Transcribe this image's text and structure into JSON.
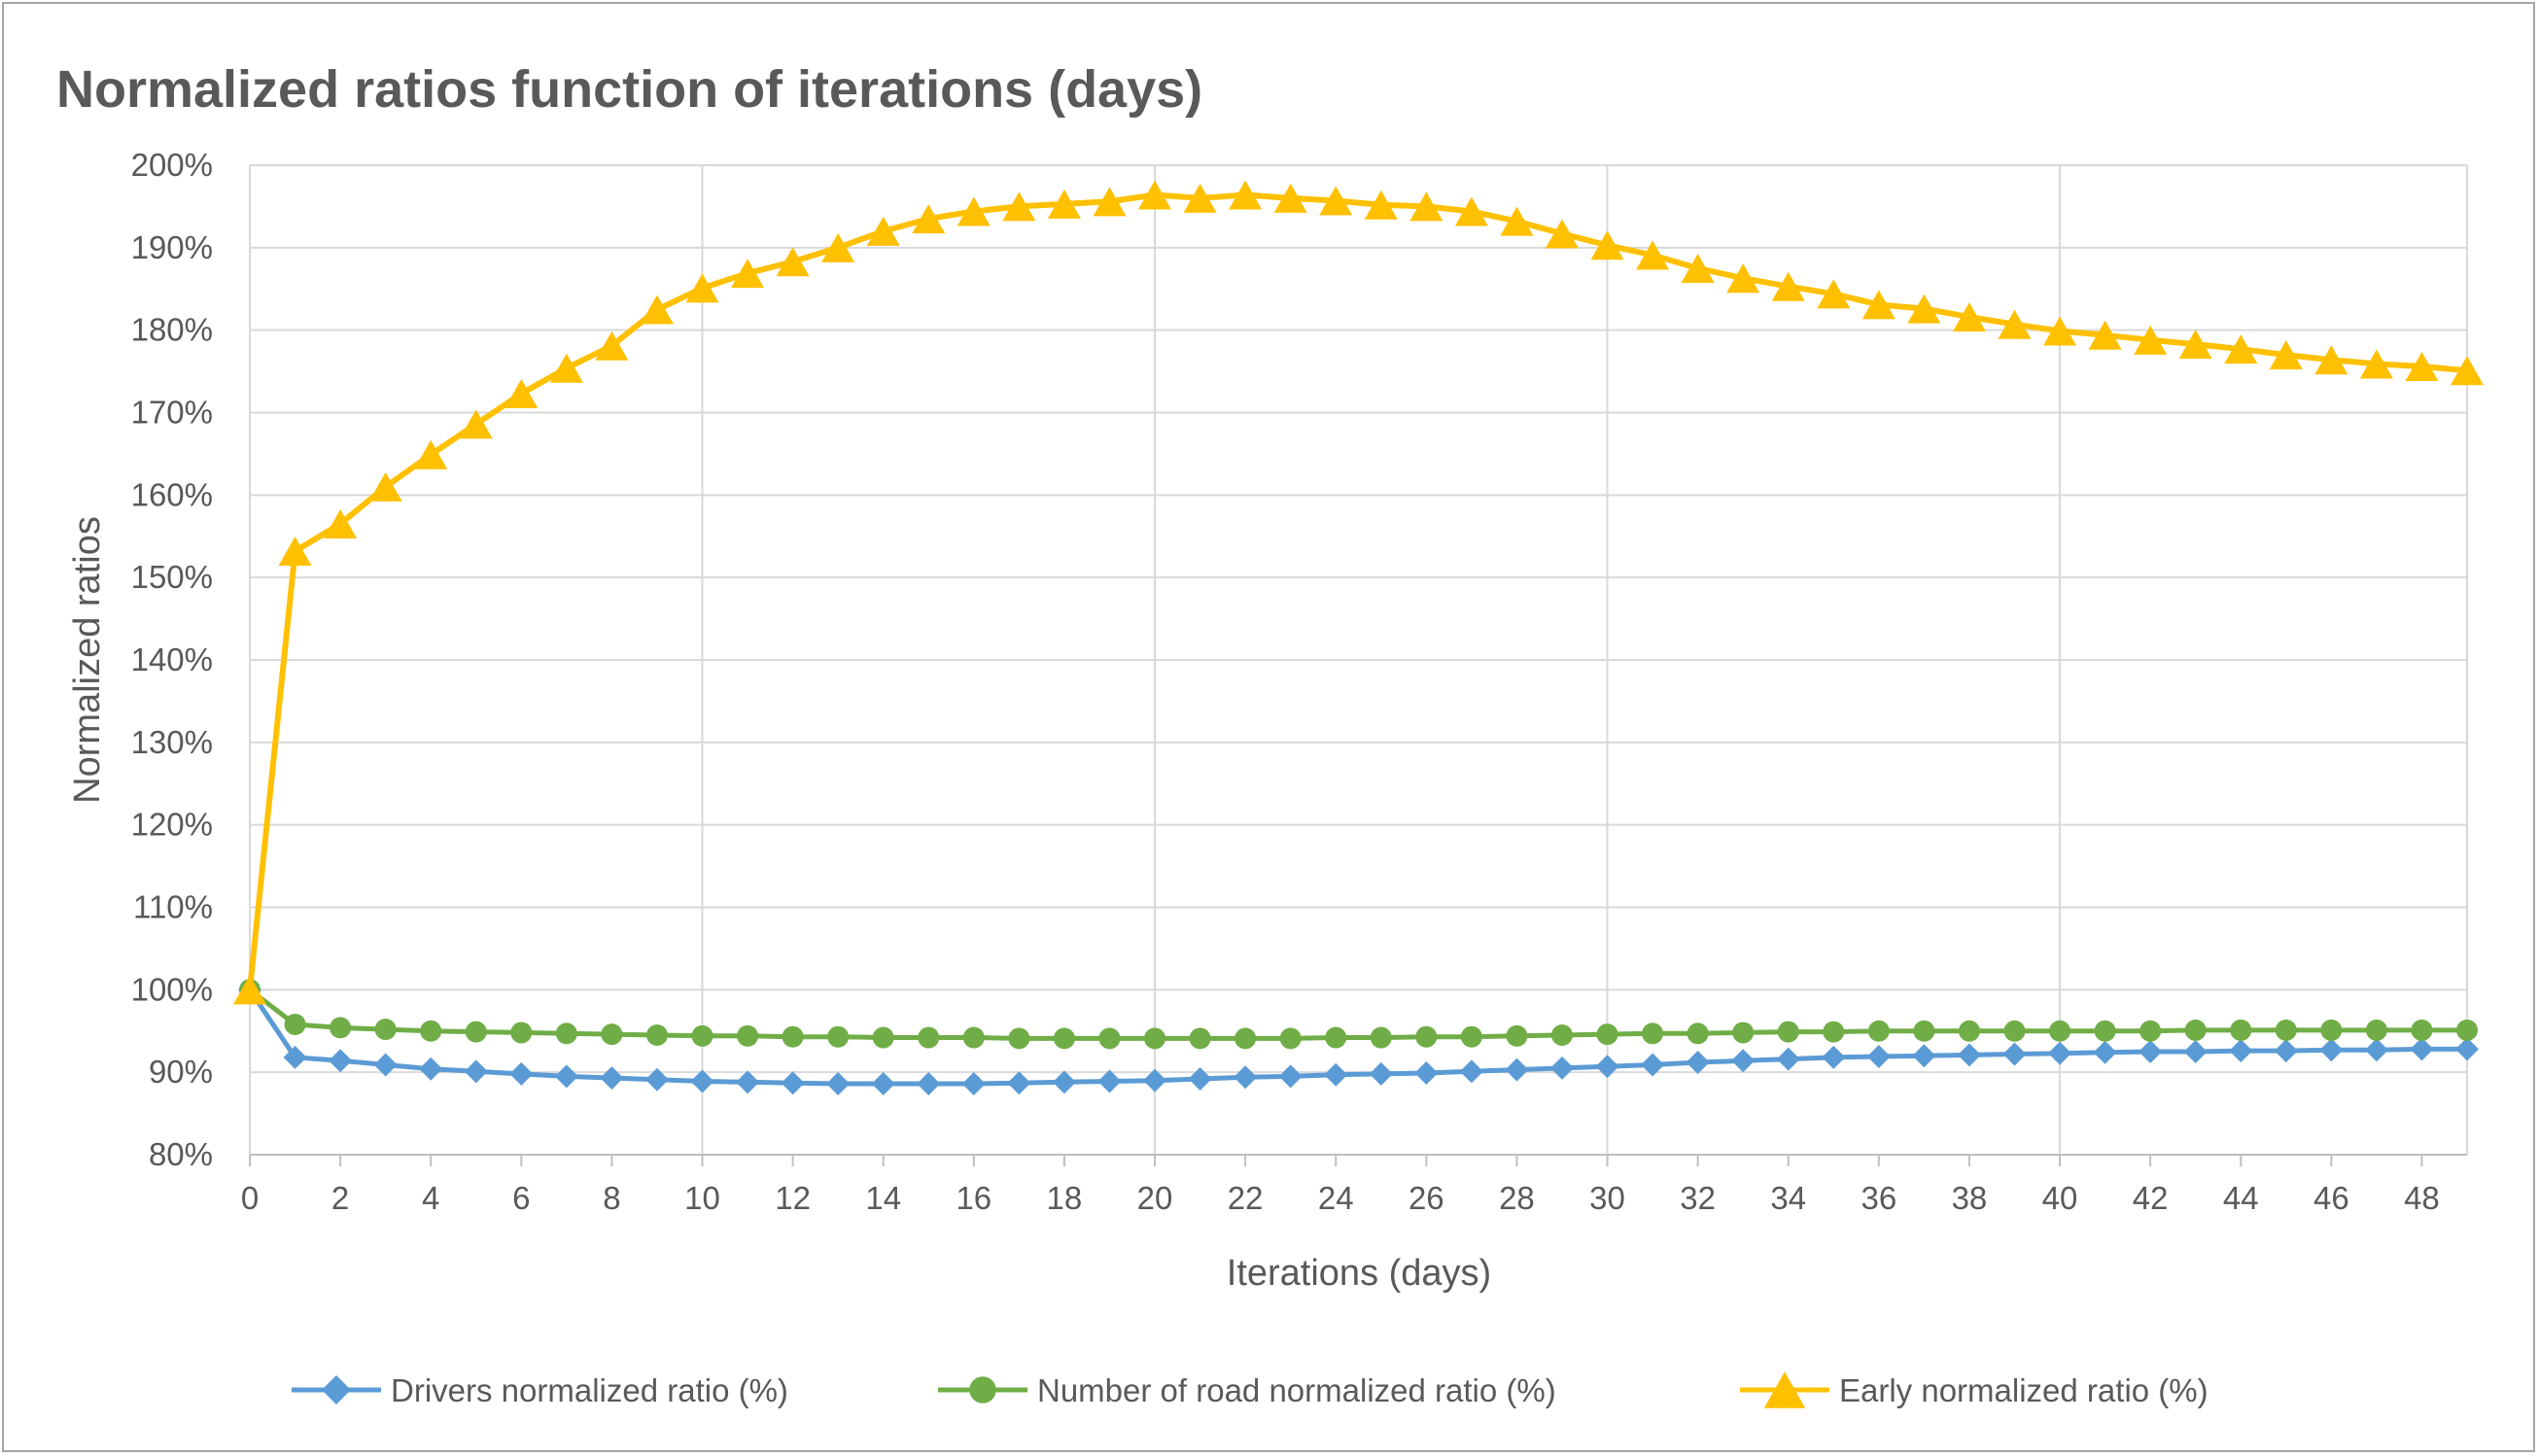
{
  "chart_data": {
    "type": "line",
    "title": "Normalized ratios function of iterations (days)",
    "xlabel": "Iterations (days)",
    "ylabel": "Normalized ratios",
    "xlim": [
      0,
      49
    ],
    "ylim": [
      80,
      200
    ],
    "x_ticks": [
      0,
      2,
      4,
      6,
      8,
      10,
      12,
      14,
      16,
      18,
      20,
      22,
      24,
      26,
      28,
      30,
      32,
      34,
      36,
      38,
      40,
      42,
      44,
      46,
      48
    ],
    "y_ticks": [
      80,
      90,
      100,
      110,
      120,
      130,
      140,
      150,
      160,
      170,
      180,
      190,
      200
    ],
    "y_tick_labels": [
      "80%",
      "90%",
      "100%",
      "110%",
      "120%",
      "130%",
      "140%",
      "150%",
      "160%",
      "170%",
      "180%",
      "190%",
      "200%"
    ],
    "x_tick_labels": [
      "0",
      "2",
      "4",
      "6",
      "8",
      "10",
      "12",
      "14",
      "16",
      "18",
      "20",
      "22",
      "24",
      "26",
      "28",
      "30",
      "32",
      "34",
      "36",
      "38",
      "40",
      "42",
      "44",
      "46",
      "48"
    ],
    "vertical_gridlines_at": [
      10,
      20,
      30,
      40
    ],
    "legend_position": "bottom",
    "x": [
      0,
      1,
      2,
      3,
      4,
      5,
      6,
      7,
      8,
      9,
      10,
      11,
      12,
      13,
      14,
      15,
      16,
      17,
      18,
      19,
      20,
      21,
      22,
      23,
      24,
      25,
      26,
      27,
      28,
      29,
      30,
      31,
      32,
      33,
      34,
      35,
      36,
      37,
      38,
      39,
      40,
      41,
      42,
      43,
      44,
      45,
      46,
      47,
      48,
      49
    ],
    "series": [
      {
        "name": "Drivers normalized ratio (%)",
        "color": "#5b9bd5",
        "marker": "diamond",
        "values": [
          100,
          91.8,
          91.4,
          90.9,
          90.4,
          90.1,
          89.8,
          89.5,
          89.3,
          89.1,
          88.9,
          88.8,
          88.7,
          88.6,
          88.6,
          88.6,
          88.6,
          88.7,
          88.8,
          88.9,
          89.0,
          89.2,
          89.4,
          89.5,
          89.7,
          89.8,
          89.9,
          90.1,
          90.3,
          90.5,
          90.7,
          90.9,
          91.2,
          91.4,
          91.6,
          91.8,
          91.9,
          92.0,
          92.1,
          92.2,
          92.3,
          92.4,
          92.5,
          92.5,
          92.6,
          92.6,
          92.7,
          92.7,
          92.8,
          92.8
        ]
      },
      {
        "name": "Number of road normalized ratio (%)",
        "color": "#70ad47",
        "marker": "circle",
        "values": [
          100,
          95.8,
          95.4,
          95.2,
          95.0,
          94.9,
          94.8,
          94.7,
          94.6,
          94.5,
          94.4,
          94.4,
          94.3,
          94.3,
          94.2,
          94.2,
          94.2,
          94.1,
          94.1,
          94.1,
          94.1,
          94.1,
          94.1,
          94.1,
          94.2,
          94.2,
          94.3,
          94.3,
          94.4,
          94.5,
          94.6,
          94.7,
          94.7,
          94.8,
          94.9,
          94.9,
          95.0,
          95.0,
          95.0,
          95.0,
          95.0,
          95.0,
          95.0,
          95.1,
          95.1,
          95.1,
          95.1,
          95.1,
          95.1,
          95.1
        ]
      },
      {
        "name": "Early normalized ratio (%)",
        "color": "#ffc000",
        "marker": "triangle",
        "values": [
          100,
          153.2,
          156.5,
          161.0,
          164.9,
          168.6,
          172.3,
          175.4,
          178.1,
          182.5,
          185.1,
          186.9,
          188.3,
          190.0,
          192.0,
          193.5,
          194.4,
          195.0,
          195.3,
          195.6,
          196.4,
          196.0,
          196.4,
          196.0,
          195.7,
          195.2,
          195.0,
          194.4,
          193.2,
          191.7,
          190.3,
          189.1,
          187.5,
          186.3,
          185.3,
          184.4,
          183.1,
          182.6,
          181.6,
          180.7,
          179.9,
          179.4,
          178.8,
          178.3,
          177.7,
          177.0,
          176.4,
          175.9,
          175.6,
          175.1
        ]
      }
    ]
  }
}
